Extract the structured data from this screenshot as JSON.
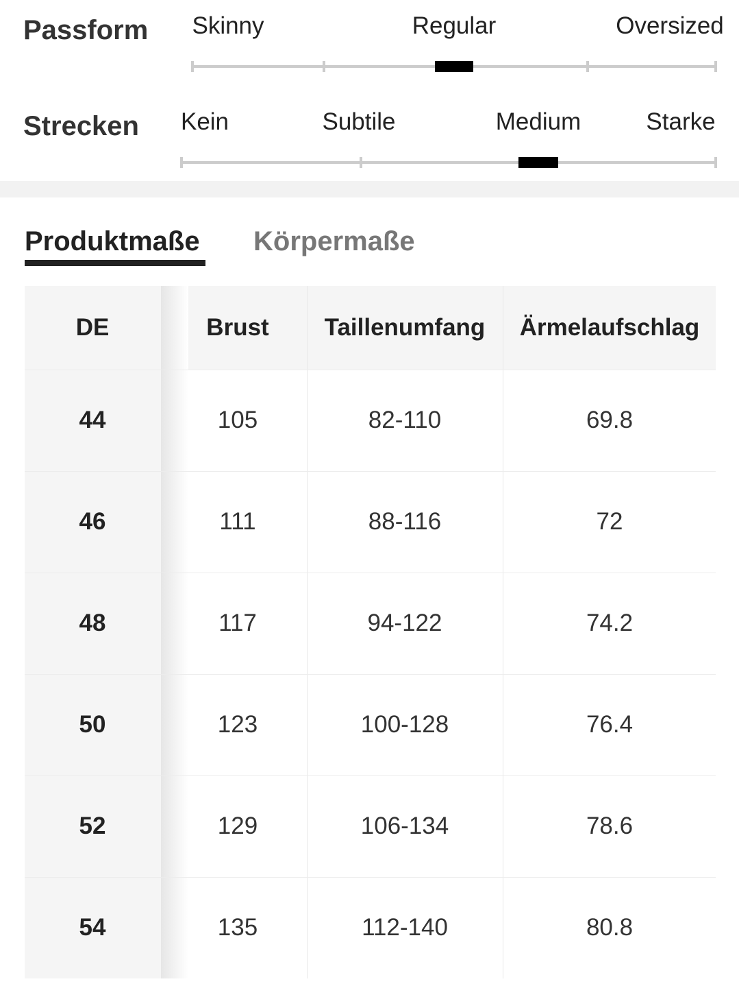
{
  "fit": [
    {
      "label": "Passform",
      "options": [
        "Skinny",
        "Regular",
        "Oversized"
      ],
      "selected": 1
    },
    {
      "label": "Strecken",
      "options": [
        "Kein",
        "Subtile",
        "Medium",
        "Starke"
      ],
      "selected": 2
    }
  ],
  "tabs": {
    "items": [
      "Produktmaße",
      "Körpermaße"
    ],
    "active": 0
  },
  "table": {
    "headers": [
      "DE",
      "Brust",
      "Taillenumfang",
      "Ärmelaufschlag"
    ],
    "rows": [
      [
        "44",
        "105",
        "82-110",
        "69.8"
      ],
      [
        "46",
        "111",
        "88-116",
        "72"
      ],
      [
        "48",
        "117",
        "94-122",
        "74.2"
      ],
      [
        "50",
        "123",
        "100-128",
        "76.4"
      ],
      [
        "52",
        "129",
        "106-134",
        "78.6"
      ],
      [
        "54",
        "135",
        "112-140",
        "80.8"
      ]
    ]
  }
}
